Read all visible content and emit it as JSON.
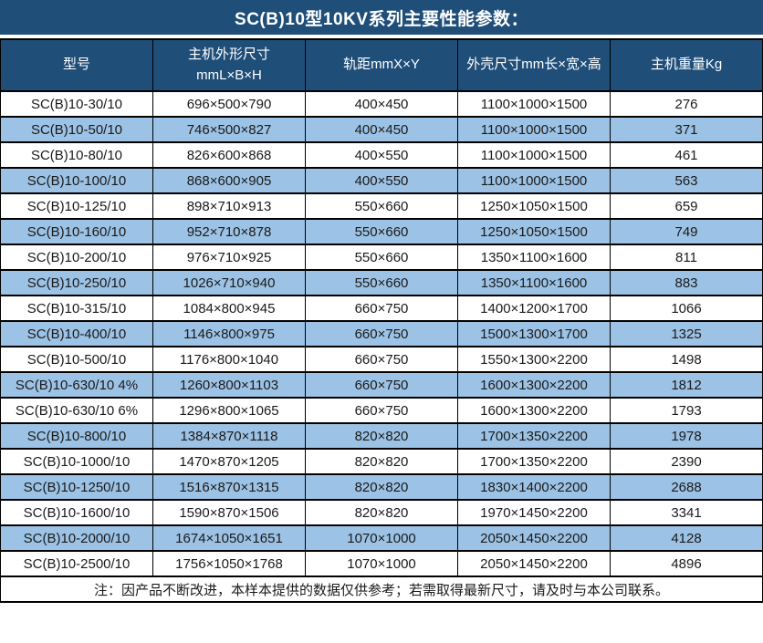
{
  "title": "SC(B)10型10KV系列主要性能参数：",
  "note": "注：因产品不断改进，本样本提供的数据仅供参考；若需取得最新尺寸，请及时与本公司联系。",
  "colors": {
    "header_bg": "#1F4E79",
    "row_alt_bg": "#9CC2E5",
    "row_bg": "#FFFFFF",
    "border": "#000000",
    "header_text": "#FFFFFF",
    "body_text": "#1A1A1A"
  },
  "header": {
    "model": "型号",
    "dim_line1": "主机外形尺寸",
    "dim_line2": "mmL×B×H",
    "rail": "轨距mmX×Y",
    "shell": "外壳尺寸mm长×宽×高",
    "weight": "主机重量Kg"
  },
  "chart_data": {
    "type": "table",
    "title": "SC(B)10型10KV系列主要性能参数",
    "columns": [
      "型号",
      "主机外形尺寸mmL×B×H",
      "轨距mmX×Y",
      "外壳尺寸mm长×宽×高",
      "主机重量Kg"
    ],
    "rows": [
      [
        "SC(B)10-30/10",
        "696×500×790",
        "400×450",
        "1100×1000×1500",
        "276"
      ],
      [
        "SC(B)10-50/10",
        "746×500×827",
        "400×450",
        "1100×1000×1500",
        "371"
      ],
      [
        "SC(B)10-80/10",
        "826×600×868",
        "400×550",
        "1100×1000×1500",
        "461"
      ],
      [
        "SC(B)10-100/10",
        "868×600×905",
        "400×550",
        "1100×1000×1500",
        "563"
      ],
      [
        "SC(B)10-125/10",
        "898×710×913",
        "550×660",
        "1250×1050×1500",
        "659"
      ],
      [
        "SC(B)10-160/10",
        "952×710×878",
        "550×660",
        "1250×1050×1500",
        "749"
      ],
      [
        "SC(B)10-200/10",
        "976×710×925",
        "550×660",
        "1350×1100×1600",
        "811"
      ],
      [
        "SC(B)10-250/10",
        "1026×710×940",
        "550×660",
        "1350×1100×1600",
        "883"
      ],
      [
        "SC(B)10-315/10",
        "1084×800×945",
        "660×750",
        "1400×1200×1700",
        "1066"
      ],
      [
        "SC(B)10-400/10",
        "1146×800×975",
        "660×750",
        "1500×1300×1700",
        "1325"
      ],
      [
        "SC(B)10-500/10",
        "1176×800×1040",
        "660×750",
        "1550×1300×2200",
        "1498"
      ],
      [
        "SC(B)10-630/10 4%",
        "1260×800×1103",
        "660×750",
        "1600×1300×2200",
        "1812"
      ],
      [
        "SC(B)10-630/10 6%",
        "1296×800×1065",
        "660×750",
        "1600×1300×2200",
        "1793"
      ],
      [
        "SC(B)10-800/10",
        "1384×870×1118",
        "820×820",
        "1700×1350×2200",
        "1978"
      ],
      [
        "SC(B)10-1000/10",
        "1470×870×1205",
        "820×820",
        "1700×1350×2200",
        "2390"
      ],
      [
        "SC(B)10-1250/10",
        "1516×870×1315",
        "820×820",
        "1830×1400×2200",
        "2688"
      ],
      [
        "SC(B)10-1600/10",
        "1590×870×1506",
        "820×820",
        "1970×1450×2200",
        "3341"
      ],
      [
        "SC(B)10-2000/10",
        "1674×1050×1651",
        "1070×1000",
        "2050×1450×2200",
        "4128"
      ],
      [
        "SC(B)10-2500/10",
        "1756×1050×1768",
        "1070×1000",
        "2050×1450×2200",
        "4896"
      ]
    ]
  }
}
